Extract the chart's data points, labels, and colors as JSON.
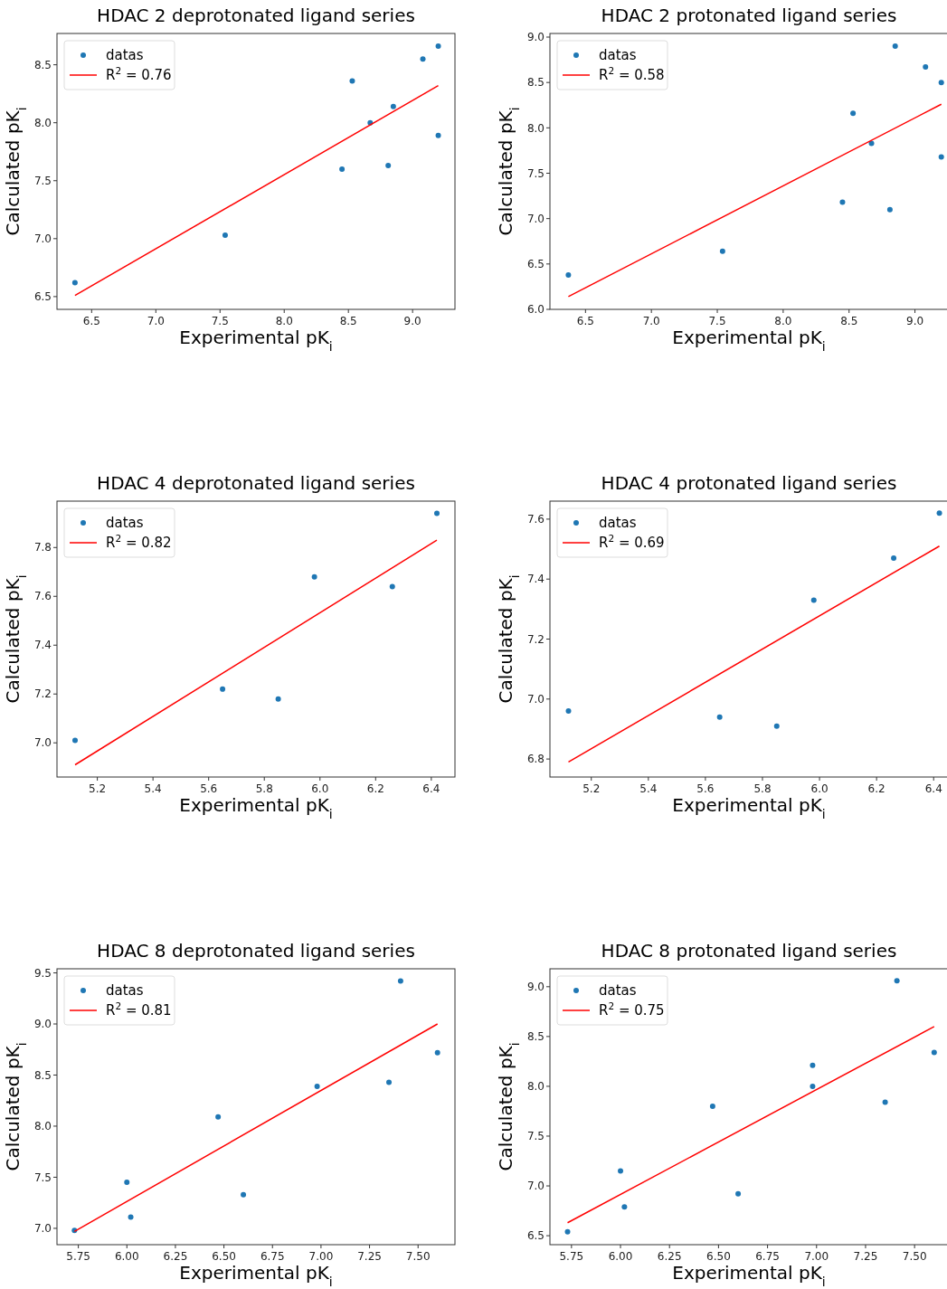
{
  "chart_data": [
    {
      "type": "scatter",
      "title": "HDAC 2 deprotonated ligand series",
      "xlabel": "Experimental pK$_{i}$",
      "ylabel": "Calculated pK$_{i}$",
      "xlim": [
        6.23,
        9.33
      ],
      "ylim": [
        6.39,
        8.77
      ],
      "xticks": [
        6.5,
        {
          "value": 7,
          "label": "7.0"
        },
        7.5,
        {
          "value": 8,
          "label": "8.0"
        },
        8.5,
        {
          "value": 9,
          "label": "9.0"
        }
      ],
      "yticks": [
        6.5,
        {
          "value": 7,
          "label": "7.0"
        },
        7.5,
        {
          "value": 8,
          "label": "8.0"
        },
        8.5
      ],
      "grid": false,
      "legend": "top left",
      "series": [
        {
          "name": "datas",
          "type": "scatter",
          "marker": "circle",
          "color": "#1f77b4",
          "x": [
            6.37,
            7.54,
            8.45,
            8.53,
            8.67,
            8.81,
            8.85,
            9.08,
            9.2,
            9.2
          ],
          "values": [
            6.62,
            7.03,
            7.6,
            8.36,
            8.0,
            7.63,
            8.14,
            8.55,
            8.66,
            7.89
          ]
        },
        {
          "name": "R$^{2}$ = 0.76",
          "type": "line",
          "marker": "none",
          "color": "#ff0000",
          "x": [
            6.37,
            9.2
          ],
          "values": [
            6.51,
            8.32
          ]
        }
      ]
    },
    {
      "type": "scatter",
      "title": "HDAC 2 protonated ligand series",
      "xlabel": "Experimental pK$_{i}$",
      "ylabel": "Calculated pK$_{i}$",
      "xlim": [
        6.23,
        9.25
      ],
      "ylim": [
        6.0,
        9.04
      ],
      "xticks": [
        6.5,
        {
          "value": 7,
          "label": "7.0"
        },
        7.5,
        {
          "value": 8,
          "label": "8.0"
        },
        8.5,
        {
          "value": 9,
          "label": "9.0"
        }
      ],
      "yticks": [
        {
          "value": 6,
          "label": "6.0"
        },
        6.5,
        {
          "value": 7,
          "label": "7.0"
        },
        7.5,
        {
          "value": 8,
          "label": "8.0"
        },
        8.5,
        {
          "value": 9,
          "label": "9.0"
        }
      ],
      "grid": false,
      "legend": "top left",
      "series": [
        {
          "name": "datas",
          "type": "scatter",
          "marker": "circle",
          "color": "#1f77b4",
          "x": [
            6.37,
            7.54,
            8.45,
            8.53,
            8.67,
            8.81,
            8.85,
            9.08,
            9.2,
            9.2
          ],
          "values": [
            6.38,
            6.64,
            7.18,
            8.16,
            7.83,
            7.1,
            8.9,
            8.67,
            8.5,
            7.68
          ]
        },
        {
          "name": "R$^{2}$ = 0.58",
          "type": "line",
          "marker": "none",
          "color": "#ff0000",
          "x": [
            6.37,
            9.2
          ],
          "values": [
            6.14,
            8.26
          ]
        }
      ]
    },
    {
      "type": "scatter",
      "title": "HDAC 4 deprotonated ligand series",
      "xlabel": "Experimental pK$_{i}$",
      "ylabel": "Calculated pK$_{i}$",
      "xlim": [
        5.055,
        6.485
      ],
      "ylim": [
        6.86,
        7.99
      ],
      "xticks": [
        5.2,
        5.4,
        5.6,
        5.8,
        {
          "value": 6,
          "label": "6.0"
        },
        6.2,
        6.4
      ],
      "yticks": [
        {
          "value": 7,
          "label": "7.0"
        },
        7.2,
        7.4,
        7.6,
        7.8
      ],
      "grid": false,
      "legend": "top left",
      "series": [
        {
          "name": "datas",
          "type": "scatter",
          "marker": "circle",
          "color": "#1f77b4",
          "x": [
            5.12,
            5.65,
            5.85,
            5.98,
            6.26,
            6.42
          ],
          "values": [
            7.01,
            7.22,
            7.18,
            7.68,
            7.64,
            7.94
          ]
        },
        {
          "name": "R$^{2}$ = 0.82",
          "type": "line",
          "marker": "none",
          "color": "#ff0000",
          "x": [
            5.12,
            6.42
          ],
          "values": [
            6.91,
            7.83
          ]
        }
      ]
    },
    {
      "type": "scatter",
      "title": "HDAC 4 protonated ligand series",
      "xlabel": "Experimental pK$_{i}$",
      "ylabel": "Calculated pK$_{i}$",
      "xlim": [
        5.055,
        6.45
      ],
      "ylim": [
        6.74,
        7.66
      ],
      "xticks": [
        5.2,
        5.4,
        5.6,
        5.8,
        {
          "value": 6,
          "label": "6.0"
        },
        6.2,
        6.4
      ],
      "yticks": [
        6.8,
        {
          "value": 7,
          "label": "7.0"
        },
        7.2,
        7.4,
        7.6
      ],
      "grid": false,
      "legend": "top left",
      "series": [
        {
          "name": "datas",
          "type": "scatter",
          "marker": "circle",
          "color": "#1f77b4",
          "x": [
            5.12,
            5.65,
            5.85,
            5.98,
            6.26,
            6.42
          ],
          "values": [
            6.96,
            6.94,
            6.91,
            7.33,
            7.47,
            7.62
          ]
        },
        {
          "name": "R$^{2}$ = 0.69",
          "type": "line",
          "marker": "none",
          "color": "#ff0000",
          "x": [
            5.12,
            6.42
          ],
          "values": [
            6.79,
            7.51
          ]
        }
      ]
    },
    {
      "type": "scatter",
      "title": "HDAC 8 deprotonated ligand series",
      "xlabel": "Experimental pK$_{i}$",
      "ylabel": "Calculated pK$_{i}$",
      "xlim": [
        5.64,
        7.69
      ],
      "ylim": [
        6.84,
        9.54
      ],
      "xticks": [
        5.75,
        {
          "value": 6,
          "label": "6.00"
        },
        6.25,
        {
          "value": 6.5,
          "label": "6.50"
        },
        6.75,
        {
          "value": 7,
          "label": "7.00"
        },
        7.25,
        {
          "value": 7.5,
          "label": "7.50"
        }
      ],
      "yticks": [
        {
          "value": 7,
          "label": "7.0"
        },
        7.5,
        {
          "value": 8,
          "label": "8.0"
        },
        8.5,
        {
          "value": 9,
          "label": "9.0"
        },
        9.5
      ],
      "grid": false,
      "legend": "top left",
      "series": [
        {
          "name": "datas",
          "type": "scatter",
          "marker": "circle",
          "color": "#1f77b4",
          "x": [
            5.73,
            6.0,
            6.02,
            6.47,
            6.6,
            6.98,
            7.35,
            7.41,
            7.6
          ],
          "values": [
            6.98,
            7.45,
            7.11,
            8.09,
            7.33,
            8.39,
            8.43,
            9.42,
            8.72
          ]
        },
        {
          "name": "R$^{2}$ = 0.81",
          "type": "line",
          "marker": "none",
          "color": "#ff0000",
          "x": [
            5.73,
            7.6
          ],
          "values": [
            6.97,
            9.0
          ]
        }
      ]
    },
    {
      "type": "scatter",
      "title": "HDAC 8 protonated ligand series",
      "xlabel": "Experimental pK$_{i}$",
      "ylabel": "Calculated pK$_{i}$",
      "xlim": [
        5.64,
        7.67
      ],
      "ylim": [
        6.41,
        9.18
      ],
      "xticks": [
        5.75,
        {
          "value": 6,
          "label": "6.00"
        },
        6.25,
        {
          "value": 6.5,
          "label": "6.50"
        },
        6.75,
        {
          "value": 7,
          "label": "7.00"
        },
        7.25,
        {
          "value": 7.5,
          "label": "7.50"
        }
      ],
      "yticks": [
        6.5,
        {
          "value": 7,
          "label": "7.0"
        },
        7.5,
        {
          "value": 8,
          "label": "8.0"
        },
        8.5,
        {
          "value": 9,
          "label": "9.0"
        }
      ],
      "grid": false,
      "legend": "top left",
      "series": [
        {
          "name": "datas",
          "type": "scatter",
          "marker": "circle",
          "color": "#1f77b4",
          "x": [
            5.73,
            6.0,
            6.02,
            6.47,
            6.6,
            6.98,
            6.98,
            7.35,
            7.41,
            7.6
          ],
          "values": [
            6.54,
            7.15,
            6.79,
            7.8,
            6.92,
            8.21,
            8.0,
            7.84,
            9.06,
            8.34
          ]
        },
        {
          "name": "R$^{2}$ = 0.75",
          "type": "line",
          "marker": "none",
          "color": "#ff0000",
          "x": [
            5.73,
            7.6
          ],
          "values": [
            6.63,
            8.6
          ]
        }
      ]
    }
  ]
}
